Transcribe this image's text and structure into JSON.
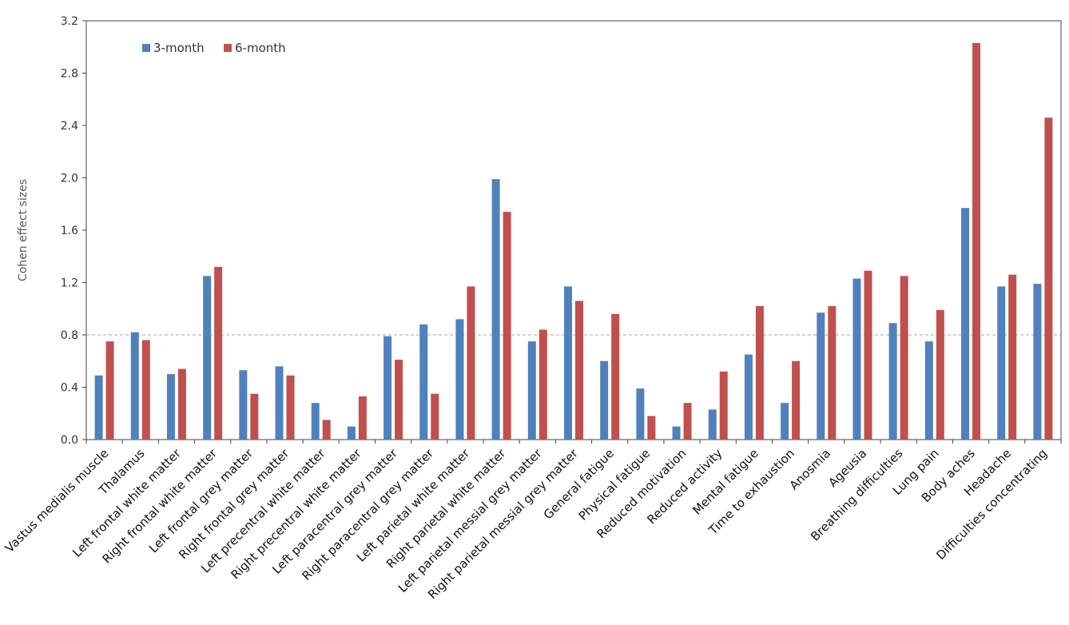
{
  "chart_data": {
    "type": "bar",
    "title": "",
    "xlabel": "",
    "ylabel": "Cohen effect sizes",
    "ylim": [
      0,
      3.2
    ],
    "yticks": [
      "0.0",
      "0.4",
      "0.8",
      "1.2",
      "1.6",
      "2.0",
      "2.4",
      "2.8",
      "3.2"
    ],
    "reference_line": 0.8,
    "grid": false,
    "legend_position": "top-left",
    "categories": [
      "Vastus medialis muscle",
      "Thalamus",
      "Left frontal white matter",
      "Right frontal white matter",
      "Left frontal grey matter",
      "Right frontal grey matter",
      "Left precentral white matter",
      "Right precentral white matter",
      "Left paracentral grey matter",
      "Right paracentral grey matter",
      "Left parietal white matter",
      "Right parietal white matter",
      "Left parietal messial grey matter",
      "Right parietal messial grey matter",
      "General fatigue",
      "Physical fatigue",
      "Reduced motivation",
      "Reduced activity",
      "Mental fatigue",
      "Time to exhaustion",
      "Anosmia",
      "Ageusia",
      "Breathing difficulties",
      "Lung pain",
      "Body aches",
      "Headache",
      "Difficulties concentrating"
    ],
    "series": [
      {
        "name": "3-month",
        "color": "#4f81bd",
        "values": [
          0.49,
          0.82,
          0.5,
          1.25,
          0.53,
          0.56,
          0.28,
          0.1,
          0.79,
          0.88,
          0.92,
          1.99,
          0.75,
          1.17,
          0.6,
          0.39,
          0.1,
          0.23,
          0.65,
          0.28,
          0.97,
          1.23,
          0.89,
          0.75,
          1.77,
          1.17,
          1.19
        ]
      },
      {
        "name": "6-month",
        "color": "#c0504d",
        "values": [
          0.75,
          0.76,
          0.54,
          1.32,
          0.35,
          0.49,
          0.15,
          0.33,
          0.61,
          0.35,
          1.17,
          1.74,
          0.84,
          1.06,
          0.96,
          0.18,
          0.28,
          0.52,
          1.02,
          0.6,
          1.02,
          1.29,
          1.25,
          0.99,
          3.03,
          1.26,
          2.46
        ]
      }
    ]
  }
}
